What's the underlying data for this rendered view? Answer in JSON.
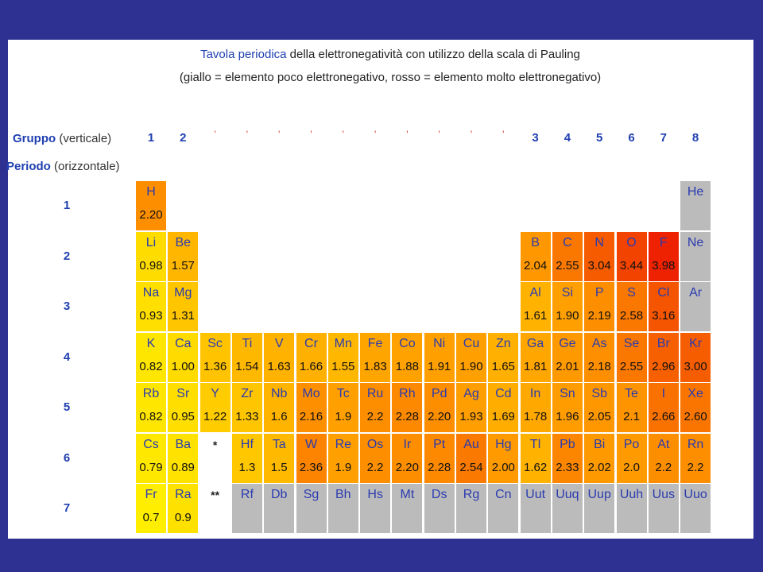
{
  "title": {
    "line1_highlight": "Tavola periodica",
    "line1_rest": " della elettronegatività con utilizzo della scala di Pauling",
    "line2": "(giallo = elemento poco elettronegativo, rosso = elemento molto elettronegativo)"
  },
  "headers": {
    "gruppo_label": "Gruppo",
    "gruppo_note": " (verticale)",
    "periodo_label": "Periodo",
    "periodo_note": " (orizzontale)"
  },
  "group_numbers": [
    "1",
    "2",
    "'",
    "'",
    "'",
    "'",
    "'",
    "'",
    "'",
    "'",
    "'",
    "'",
    "3",
    "4",
    "5",
    "6",
    "7",
    "8"
  ],
  "period_numbers": [
    "1",
    "2",
    "3",
    "4",
    "5",
    "6",
    "7"
  ],
  "series_markers": [
    "*",
    "**"
  ],
  "elements": [
    {
      "sym": "H",
      "en": "2.20",
      "row": 1,
      "col": 1
    },
    {
      "sym": "He",
      "en": "",
      "row": 1,
      "col": 18
    },
    {
      "sym": "Li",
      "en": "0.98",
      "row": 2,
      "col": 1
    },
    {
      "sym": "Be",
      "en": "1.57",
      "row": 2,
      "col": 2
    },
    {
      "sym": "B",
      "en": "2.04",
      "row": 2,
      "col": 13
    },
    {
      "sym": "C",
      "en": "2.55",
      "row": 2,
      "col": 14
    },
    {
      "sym": "N",
      "en": "3.04",
      "row": 2,
      "col": 15
    },
    {
      "sym": "O",
      "en": "3.44",
      "row": 2,
      "col": 16
    },
    {
      "sym": "F",
      "en": "3.98",
      "row": 2,
      "col": 17
    },
    {
      "sym": "Ne",
      "en": "",
      "row": 2,
      "col": 18
    },
    {
      "sym": "Na",
      "en": "0.93",
      "row": 3,
      "col": 1
    },
    {
      "sym": "Mg",
      "en": "1.31",
      "row": 3,
      "col": 2
    },
    {
      "sym": "Al",
      "en": "1.61",
      "row": 3,
      "col": 13
    },
    {
      "sym": "Si",
      "en": "1.90",
      "row": 3,
      "col": 14
    },
    {
      "sym": "P",
      "en": "2.19",
      "row": 3,
      "col": 15
    },
    {
      "sym": "S",
      "en": "2.58",
      "row": 3,
      "col": 16
    },
    {
      "sym": "Cl",
      "en": "3.16",
      "row": 3,
      "col": 17
    },
    {
      "sym": "Ar",
      "en": "",
      "row": 3,
      "col": 18
    },
    {
      "sym": "K",
      "en": "0.82",
      "row": 4,
      "col": 1
    },
    {
      "sym": "Ca",
      "en": "1.00",
      "row": 4,
      "col": 2
    },
    {
      "sym": "Sc",
      "en": "1.36",
      "row": 4,
      "col": 3
    },
    {
      "sym": "Ti",
      "en": "1.54",
      "row": 4,
      "col": 4
    },
    {
      "sym": "V",
      "en": "1.63",
      "row": 4,
      "col": 5
    },
    {
      "sym": "Cr",
      "en": "1.66",
      "row": 4,
      "col": 6
    },
    {
      "sym": "Mn",
      "en": "1.55",
      "row": 4,
      "col": 7
    },
    {
      "sym": "Fe",
      "en": "1.83",
      "row": 4,
      "col": 8
    },
    {
      "sym": "Co",
      "en": "1.88",
      "row": 4,
      "col": 9
    },
    {
      "sym": "Ni",
      "en": "1.91",
      "row": 4,
      "col": 10
    },
    {
      "sym": "Cu",
      "en": "1.90",
      "row": 4,
      "col": 11
    },
    {
      "sym": "Zn",
      "en": "1.65",
      "row": 4,
      "col": 12
    },
    {
      "sym": "Ga",
      "en": "1.81",
      "row": 4,
      "col": 13
    },
    {
      "sym": "Ge",
      "en": "2.01",
      "row": 4,
      "col": 14
    },
    {
      "sym": "As",
      "en": "2.18",
      "row": 4,
      "col": 15
    },
    {
      "sym": "Se",
      "en": "2.55",
      "row": 4,
      "col": 16
    },
    {
      "sym": "Br",
      "en": "2.96",
      "row": 4,
      "col": 17
    },
    {
      "sym": "Kr",
      "en": "3.00",
      "row": 4,
      "col": 18
    },
    {
      "sym": "Rb",
      "en": "0.82",
      "row": 5,
      "col": 1
    },
    {
      "sym": "Sr",
      "en": "0.95",
      "row": 5,
      "col": 2
    },
    {
      "sym": "Y",
      "en": "1.22",
      "row": 5,
      "col": 3
    },
    {
      "sym": "Zr",
      "en": "1.33",
      "row": 5,
      "col": 4
    },
    {
      "sym": "Nb",
      "en": "1.6",
      "row": 5,
      "col": 5
    },
    {
      "sym": "Mo",
      "en": "2.16",
      "row": 5,
      "col": 6
    },
    {
      "sym": "Tc",
      "en": "1.9",
      "row": 5,
      "col": 7
    },
    {
      "sym": "Ru",
      "en": "2.2",
      "row": 5,
      "col": 8
    },
    {
      "sym": "Rh",
      "en": "2.28",
      "row": 5,
      "col": 9
    },
    {
      "sym": "Pd",
      "en": "2.20",
      "row": 5,
      "col": 10
    },
    {
      "sym": "Ag",
      "en": "1.93",
      "row": 5,
      "col": 11
    },
    {
      "sym": "Cd",
      "en": "1.69",
      "row": 5,
      "col": 12
    },
    {
      "sym": "In",
      "en": "1.78",
      "row": 5,
      "col": 13
    },
    {
      "sym": "Sn",
      "en": "1.96",
      "row": 5,
      "col": 14
    },
    {
      "sym": "Sb",
      "en": "2.05",
      "row": 5,
      "col": 15
    },
    {
      "sym": "Te",
      "en": "2.1",
      "row": 5,
      "col": 16
    },
    {
      "sym": "I",
      "en": "2.66",
      "row": 5,
      "col": 17
    },
    {
      "sym": "Xe",
      "en": "2.60",
      "row": 5,
      "col": 18
    },
    {
      "sym": "Cs",
      "en": "0.79",
      "row": 6,
      "col": 1
    },
    {
      "sym": "Ba",
      "en": "0.89",
      "row": 6,
      "col": 2
    },
    {
      "sym": "Hf",
      "en": "1.3",
      "row": 6,
      "col": 4
    },
    {
      "sym": "Ta",
      "en": "1.5",
      "row": 6,
      "col": 5
    },
    {
      "sym": "W",
      "en": "2.36",
      "row": 6,
      "col": 6
    },
    {
      "sym": "Re",
      "en": "1.9",
      "row": 6,
      "col": 7
    },
    {
      "sym": "Os",
      "en": "2.2",
      "row": 6,
      "col": 8
    },
    {
      "sym": "Ir",
      "en": "2.20",
      "row": 6,
      "col": 9
    },
    {
      "sym": "Pt",
      "en": "2.28",
      "row": 6,
      "col": 10
    },
    {
      "sym": "Au",
      "en": "2.54",
      "row": 6,
      "col": 11
    },
    {
      "sym": "Hg",
      "en": "2.00",
      "row": 6,
      "col": 12
    },
    {
      "sym": "Tl",
      "en": "1.62",
      "row": 6,
      "col": 13
    },
    {
      "sym": "Pb",
      "en": "2.33",
      "row": 6,
      "col": 14
    },
    {
      "sym": "Bi",
      "en": "2.02",
      "row": 6,
      "col": 15
    },
    {
      "sym": "Po",
      "en": "2.0",
      "row": 6,
      "col": 16
    },
    {
      "sym": "At",
      "en": "2.2",
      "row": 6,
      "col": 17
    },
    {
      "sym": "Rn",
      "en": "2.2",
      "row": 6,
      "col": 18
    },
    {
      "sym": "Fr",
      "en": "0.7",
      "row": 7,
      "col": 1
    },
    {
      "sym": "Ra",
      "en": "0.9",
      "row": 7,
      "col": 2
    },
    {
      "sym": "Rf",
      "en": "",
      "row": 7,
      "col": 4
    },
    {
      "sym": "Db",
      "en": "",
      "row": 7,
      "col": 5
    },
    {
      "sym": "Sg",
      "en": "",
      "row": 7,
      "col": 6
    },
    {
      "sym": "Bh",
      "en": "",
      "row": 7,
      "col": 7
    },
    {
      "sym": "Hs",
      "en": "",
      "row": 7,
      "col": 8
    },
    {
      "sym": "Mt",
      "en": "",
      "row": 7,
      "col": 9
    },
    {
      "sym": "Ds",
      "en": "",
      "row": 7,
      "col": 10
    },
    {
      "sym": "Rg",
      "en": "",
      "row": 7,
      "col": 11
    },
    {
      "sym": "Cn",
      "en": "",
      "row": 7,
      "col": 12
    },
    {
      "sym": "Uut",
      "en": "",
      "row": 7,
      "col": 13
    },
    {
      "sym": "Uuq",
      "en": "",
      "row": 7,
      "col": 14
    },
    {
      "sym": "Uup",
      "en": "",
      "row": 7,
      "col": 15
    },
    {
      "sym": "Uuh",
      "en": "",
      "row": 7,
      "col": 16
    },
    {
      "sym": "Uus",
      "en": "",
      "row": 7,
      "col": 17
    },
    {
      "sym": "Uuo",
      "en": "",
      "row": 7,
      "col": 18
    }
  ],
  "colors": {
    "background": "#2e3192",
    "no_value": "#bbbbbb",
    "low": "#ffee00",
    "mid": "#ff9900",
    "high": "#ee2200"
  }
}
